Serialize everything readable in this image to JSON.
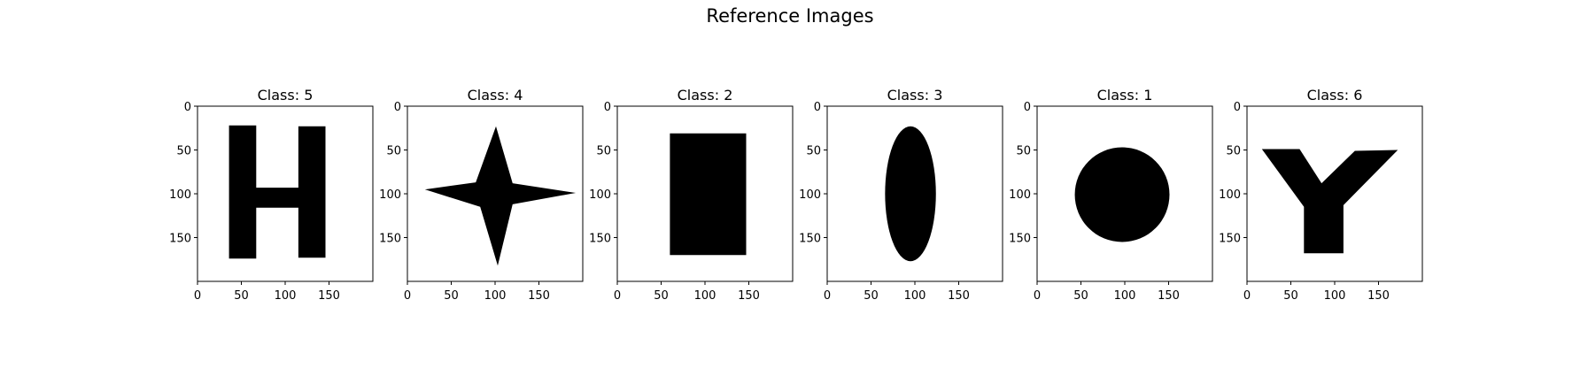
{
  "figure": {
    "title": "Reference Images"
  },
  "chart_data": [
    {
      "type": "image",
      "title": "Class: 5",
      "shape": "H",
      "xlim": [
        0,
        200
      ],
      "ylim": [
        200,
        0
      ],
      "xticks": [
        0,
        50,
        100,
        150
      ],
      "yticks": [
        0,
        50,
        100,
        150
      ],
      "polygon": [
        [
          36,
          22
        ],
        [
          67,
          22
        ],
        [
          67,
          93
        ],
        [
          115,
          93
        ],
        [
          115,
          23
        ],
        [
          146,
          23
        ],
        [
          146,
          173
        ],
        [
          115,
          173
        ],
        [
          115,
          116
        ],
        [
          67,
          116
        ],
        [
          67,
          174
        ],
        [
          36,
          174
        ]
      ]
    },
    {
      "type": "image",
      "title": "Class: 4",
      "shape": "4-point star",
      "xlim": [
        0,
        200
      ],
      "ylim": [
        200,
        0
      ],
      "xticks": [
        0,
        50,
        100,
        150
      ],
      "yticks": [
        0,
        50,
        100,
        150
      ],
      "polygon": [
        [
          101,
          23
        ],
        [
          120,
          88
        ],
        [
          192,
          99
        ],
        [
          120,
          112
        ],
        [
          103,
          182
        ],
        [
          83,
          115
        ],
        [
          20,
          95
        ],
        [
          78,
          87
        ]
      ]
    },
    {
      "type": "image",
      "title": "Class: 2",
      "shape": "rectangle",
      "xlim": [
        0,
        200
      ],
      "ylim": [
        200,
        0
      ],
      "xticks": [
        0,
        50,
        100,
        150
      ],
      "yticks": [
        0,
        50,
        100,
        150
      ],
      "polygon": [
        [
          60,
          31
        ],
        [
          147,
          31
        ],
        [
          147,
          170
        ],
        [
          60,
          170
        ]
      ]
    },
    {
      "type": "image",
      "title": "Class: 3",
      "shape": "ellipse",
      "xlim": [
        0,
        200
      ],
      "ylim": [
        200,
        0
      ],
      "xticks": [
        0,
        50,
        100,
        150
      ],
      "yticks": [
        0,
        50,
        100,
        150
      ],
      "ellipse": {
        "cx": 95,
        "cy": 100,
        "rx": 29,
        "ry": 77
      }
    },
    {
      "type": "image",
      "title": "Class: 1",
      "shape": "circle",
      "xlim": [
        0,
        200
      ],
      "ylim": [
        200,
        0
      ],
      "xticks": [
        0,
        50,
        100,
        150
      ],
      "yticks": [
        0,
        50,
        100,
        150
      ],
      "ellipse": {
        "cx": 97,
        "cy": 101,
        "rx": 54,
        "ry": 54
      }
    },
    {
      "type": "image",
      "title": "Class: 6",
      "shape": "Y",
      "xlim": [
        0,
        200
      ],
      "ylim": [
        200,
        0
      ],
      "xticks": [
        0,
        50,
        100,
        150
      ],
      "yticks": [
        0,
        50,
        100,
        150
      ],
      "polygon": [
        [
          17,
          49
        ],
        [
          60,
          49
        ],
        [
          85,
          88
        ],
        [
          123,
          51
        ],
        [
          172,
          50
        ],
        [
          110,
          113
        ],
        [
          110,
          168
        ],
        [
          65,
          168
        ],
        [
          65,
          115
        ]
      ]
    }
  ]
}
